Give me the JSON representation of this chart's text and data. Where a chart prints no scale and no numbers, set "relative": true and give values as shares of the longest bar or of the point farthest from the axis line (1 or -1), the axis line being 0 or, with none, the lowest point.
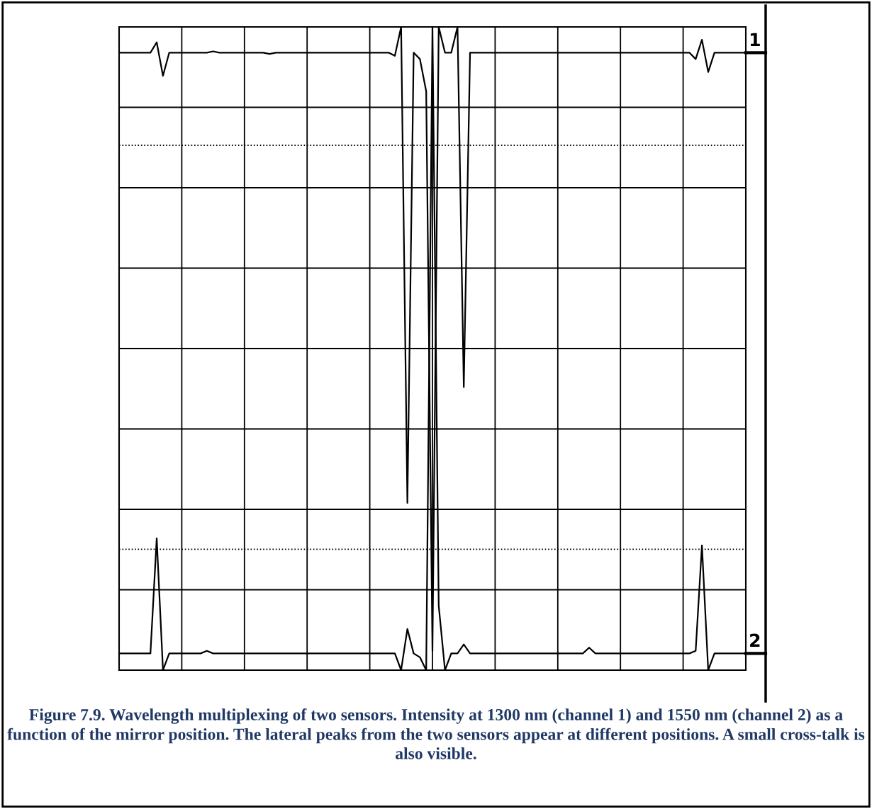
{
  "chart_data": {
    "type": "line",
    "relative": true,
    "grid": true,
    "marker": "none",
    "line_style": "solid",
    "categories": [
      null,
      null,
      null,
      null,
      null,
      null,
      null,
      null,
      null,
      null,
      null,
      null,
      null,
      null,
      null,
      null,
      null,
      null,
      null,
      null,
      null,
      null,
      null,
      null,
      null,
      null,
      null,
      null,
      null,
      null,
      null,
      null,
      null,
      null,
      null,
      null,
      null,
      null,
      null,
      null,
      null,
      null,
      null,
      null,
      null,
      null,
      null,
      null,
      null,
      null,
      null,
      null,
      null,
      null,
      null,
      null,
      null,
      null,
      null,
      null,
      null,
      null,
      null,
      null,
      null,
      null,
      null,
      null,
      null,
      null,
      null,
      null,
      null,
      null,
      null,
      null,
      null,
      null,
      null,
      null,
      null,
      null,
      null,
      null,
      null,
      null,
      null,
      null,
      null,
      null,
      null,
      null,
      null,
      null,
      null,
      null,
      null,
      null,
      null,
      null,
      null
    ],
    "series": [
      {
        "name": "1",
        "color": "#000000",
        "values": [
          0.96,
          0.96,
          0.96,
          0.96,
          0.96,
          0.96,
          0.976,
          0.924,
          0.96,
          0.96,
          0.96,
          0.96,
          0.96,
          0.96,
          0.96,
          0.962,
          0.96,
          0.96,
          0.96,
          0.96,
          0.96,
          0.96,
          0.96,
          0.96,
          0.958,
          0.96,
          0.96,
          0.96,
          0.96,
          0.96,
          0.96,
          0.96,
          0.96,
          0.96,
          0.96,
          0.96,
          0.96,
          0.96,
          0.96,
          0.96,
          0.96,
          0.96,
          0.96,
          0.96,
          0.955,
          1.0,
          0.26,
          0.96,
          0.95,
          0.9,
          0.03,
          1.0,
          0.96,
          0.96,
          1.0,
          0.44,
          0.96,
          0.96,
          0.96,
          0.96,
          0.96,
          0.96,
          0.96,
          0.96,
          0.96,
          0.96,
          0.96,
          0.96,
          0.96,
          0.96,
          0.96,
          0.96,
          0.96,
          0.96,
          0.96,
          0.96,
          0.96,
          0.96,
          0.96,
          0.96,
          0.96,
          0.96,
          0.96,
          0.96,
          0.96,
          0.96,
          0.96,
          0.96,
          0.96,
          0.96,
          0.96,
          0.96,
          0.95,
          0.98,
          0.93,
          0.96,
          0.96,
          0.96,
          0.96,
          0.96,
          0.96
        ]
      },
      {
        "name": "2",
        "color": "#000000",
        "values": [
          0.026,
          0.026,
          0.026,
          0.026,
          0.026,
          0.026,
          0.205,
          0.0,
          0.026,
          0.026,
          0.026,
          0.026,
          0.026,
          0.026,
          0.03,
          0.026,
          0.026,
          0.026,
          0.026,
          0.026,
          0.026,
          0.026,
          0.026,
          0.026,
          0.026,
          0.026,
          0.026,
          0.026,
          0.026,
          0.026,
          0.026,
          0.026,
          0.026,
          0.026,
          0.026,
          0.026,
          0.026,
          0.026,
          0.026,
          0.026,
          0.026,
          0.026,
          0.026,
          0.026,
          0.026,
          0.0,
          0.064,
          0.026,
          0.02,
          0.0,
          1.0,
          0.1,
          0.0,
          0.026,
          0.026,
          0.04,
          0.026,
          0.026,
          0.026,
          0.026,
          0.026,
          0.026,
          0.026,
          0.026,
          0.026,
          0.026,
          0.026,
          0.026,
          0.026,
          0.026,
          0.026,
          0.026,
          0.026,
          0.026,
          0.026,
          0.035,
          0.026,
          0.026,
          0.026,
          0.026,
          0.026,
          0.026,
          0.026,
          0.026,
          0.026,
          0.026,
          0.026,
          0.026,
          0.026,
          0.026,
          0.026,
          0.026,
          0.03,
          0.194,
          0.0,
          0.026,
          0.026,
          0.026,
          0.026,
          0.026,
          0.026
        ]
      }
    ],
    "ref_lines": [
      {
        "axis": "y",
        "value": 0.816,
        "color": "#000000",
        "line_style": "dotted"
      },
      {
        "axis": "y",
        "value": 0.188,
        "color": "#000000",
        "line_style": "dotted"
      }
    ],
    "annotations": [
      "Figure 7.9. Wavelength multiplexing of two sensors. Intensity at 1300 nm (channel 1) and 1550 nm (channel 2) as a function of the mirror position. The lateral peaks from the two sensors appear at different positions. A small cross-talk is also visible."
    ]
  }
}
